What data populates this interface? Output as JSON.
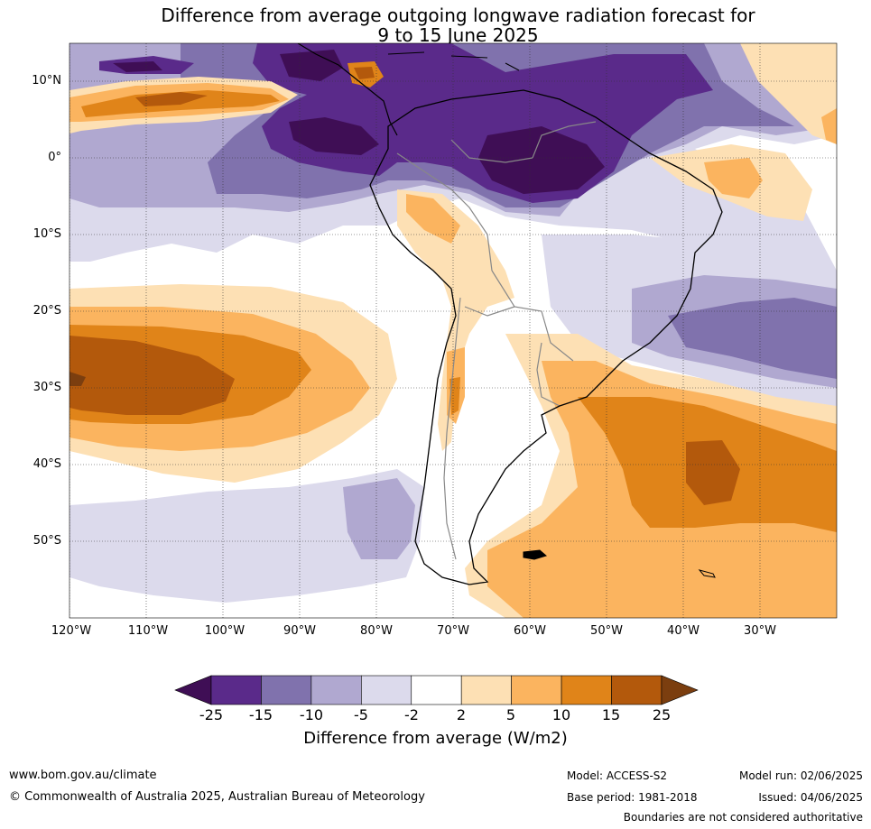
{
  "title": {
    "line1": "Difference from average outgoing longwave radiation forecast for",
    "line2": "9 to 15 June 2025"
  },
  "map": {
    "region": "South America and adjacent oceans",
    "lat_labels": [
      "10°N",
      "0°",
      "10°S",
      "20°S",
      "30°S",
      "40°S",
      "50°S"
    ],
    "lon_labels": [
      "120°W",
      "110°W",
      "100°W",
      "90°W",
      "80°W",
      "70°W",
      "60°W",
      "50°W",
      "40°W",
      "30°W"
    ],
    "gridlines": "dotted",
    "land_outline_color": "#000000",
    "border_color": "#888888"
  },
  "colorbar": {
    "ticks": [
      "-25",
      "-15",
      "-10",
      "-5",
      "-2",
      "2",
      "5",
      "10",
      "15",
      "25"
    ],
    "colors": [
      "#3f0e55",
      "#5a2a8a",
      "#8072ad",
      "#b0a8d0",
      "#dcdaec",
      "#ffffff",
      "#fde0b4",
      "#fbb45f",
      "#e08419",
      "#b3590c",
      "#7b3e0f"
    ],
    "label": "Difference from average (W/m2)"
  },
  "footer": {
    "website": "www.bom.gov.au/climate",
    "copyright": "© Commonwealth of Australia 2025, Australian Bureau of Meteorology",
    "model": "Model: ACCESS-S2",
    "base_period": "Base period: 1981-2018",
    "model_run": "Model run: 02/06/2025",
    "issued": "Issued: 04/06/2025",
    "disclaimer": "Boundaries are not considered authoritative"
  }
}
